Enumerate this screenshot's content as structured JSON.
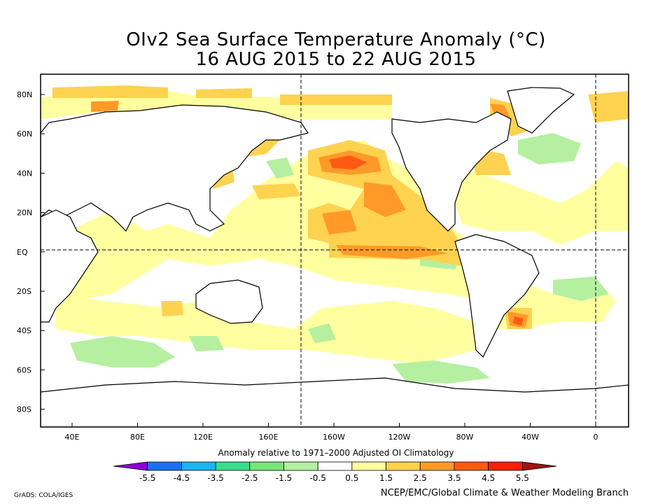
{
  "title": {
    "line1": "OIv2 Sea Surface Temperature Anomaly (°C)",
    "line2": "16 AUG 2015 to 22 AUG 2015"
  },
  "axes": {
    "lat_labels": [
      "80N",
      "60N",
      "40N",
      "20N",
      "EQ",
      "20S",
      "40S",
      "60S",
      "80S"
    ],
    "lon_labels": [
      "40E",
      "80E",
      "120E",
      "160E",
      "160W",
      "120W",
      "80W",
      "40W",
      "0"
    ]
  },
  "colorbar": {
    "title": "Anomaly relative to 1971–2000 Adjusted OI Climatology",
    "labels": [
      "-5.5",
      "-4.5",
      "-3.5",
      "-2.5",
      "-1.5",
      "-0.5",
      "0.5",
      "1.5",
      "2.5",
      "3.5",
      "4.5",
      "5.5"
    ],
    "colors": [
      "#8c00d8",
      "#1e6ef0",
      "#1eb4f0",
      "#3cdc8c",
      "#78e678",
      "#b4f0a0",
      "#ffffff",
      "#ffffa0",
      "#ffd250",
      "#ff9a28",
      "#ff5a14",
      "#ff1e0a",
      "#a0140a"
    ]
  },
  "credits": {
    "left": "GrADS: COLA/IGES",
    "right": "NCEP/EMC/Global Climate & Weather Modeling Branch"
  }
}
